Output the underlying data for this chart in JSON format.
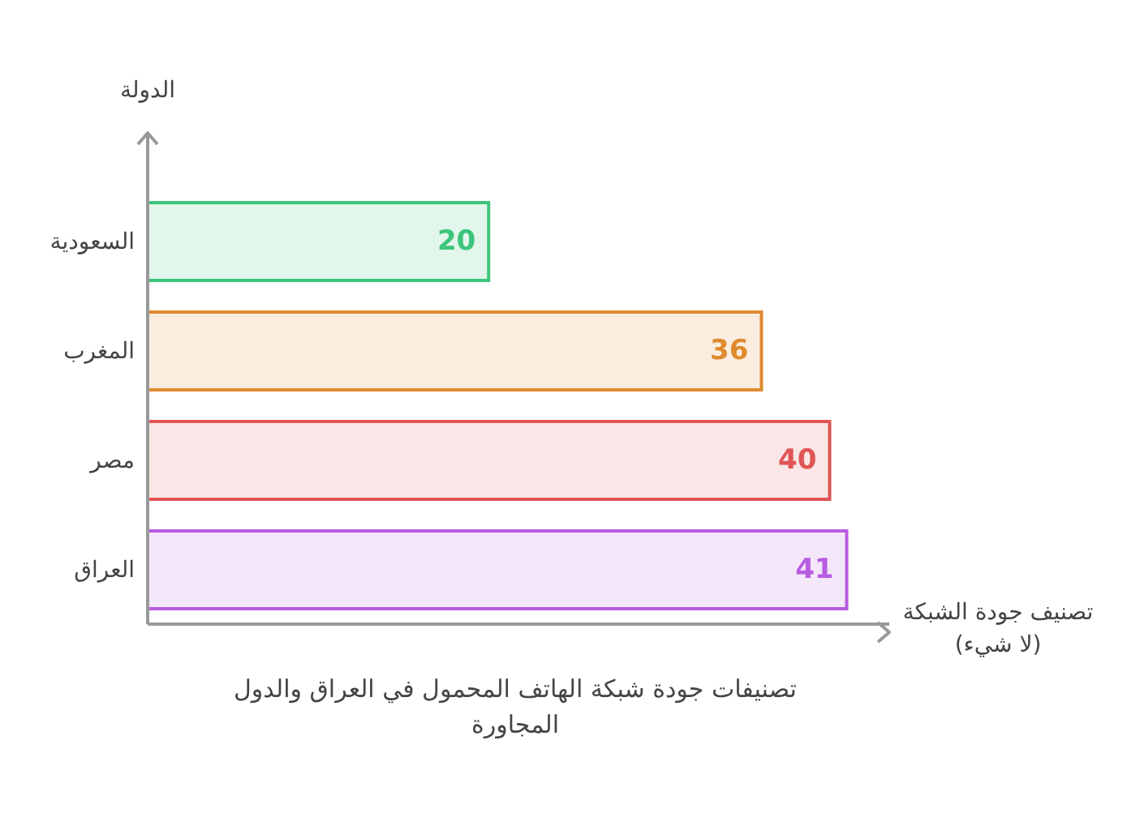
{
  "chart_data": {
    "type": "bar",
    "orientation": "horizontal",
    "title": "تصنيفات جودة شبكة الهاتف المحمول في العراق والدول المجاورة",
    "xlabel": "تصنيف جودة الشبكة (لا شيء)",
    "ylabel": "الدولة",
    "categories": [
      "السعودية",
      "المغرب",
      "مصر",
      "العراق"
    ],
    "values": [
      20,
      36,
      40,
      41
    ],
    "colors": [
      "#3cc47c",
      "#e08a2e",
      "#e05555",
      "#b85ce0"
    ],
    "data_labels": true,
    "tick_labels": "y",
    "legend": false,
    "grid": false
  }
}
